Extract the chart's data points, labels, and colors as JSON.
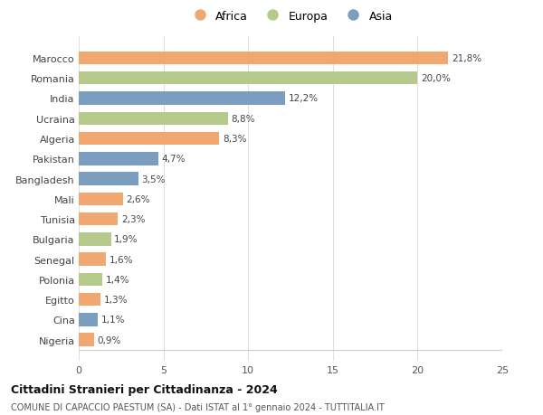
{
  "countries": [
    "Marocco",
    "Romania",
    "India",
    "Ucraina",
    "Algeria",
    "Pakistan",
    "Bangladesh",
    "Mali",
    "Tunisia",
    "Bulgaria",
    "Senegal",
    "Polonia",
    "Egitto",
    "Cina",
    "Nigeria"
  ],
  "values": [
    21.8,
    20.0,
    12.2,
    8.8,
    8.3,
    4.7,
    3.5,
    2.6,
    2.3,
    1.9,
    1.6,
    1.4,
    1.3,
    1.1,
    0.9
  ],
  "labels": [
    "21,8%",
    "20,0%",
    "12,2%",
    "8,8%",
    "8,3%",
    "4,7%",
    "3,5%",
    "2,6%",
    "2,3%",
    "1,9%",
    "1,6%",
    "1,4%",
    "1,3%",
    "1,1%",
    "0,9%"
  ],
  "continents": [
    "Africa",
    "Europa",
    "Asia",
    "Europa",
    "Africa",
    "Asia",
    "Asia",
    "Africa",
    "Africa",
    "Europa",
    "Africa",
    "Europa",
    "Africa",
    "Asia",
    "Africa"
  ],
  "colors": {
    "Africa": "#F0A870",
    "Europa": "#B5C98A",
    "Asia": "#7B9DC0"
  },
  "legend_labels": [
    "Africa",
    "Europa",
    "Asia"
  ],
  "xlim": [
    0,
    25
  ],
  "xticks": [
    0,
    5,
    10,
    15,
    20,
    25
  ],
  "title": "Cittadini Stranieri per Cittadinanza - 2024",
  "subtitle": "COMUNE DI CAPACCIO PAESTUM (SA) - Dati ISTAT al 1° gennaio 2024 - TUTTITALIA.IT",
  "background_color": "#ffffff",
  "bar_height": 0.65,
  "grid_color": "#e0e0e0"
}
